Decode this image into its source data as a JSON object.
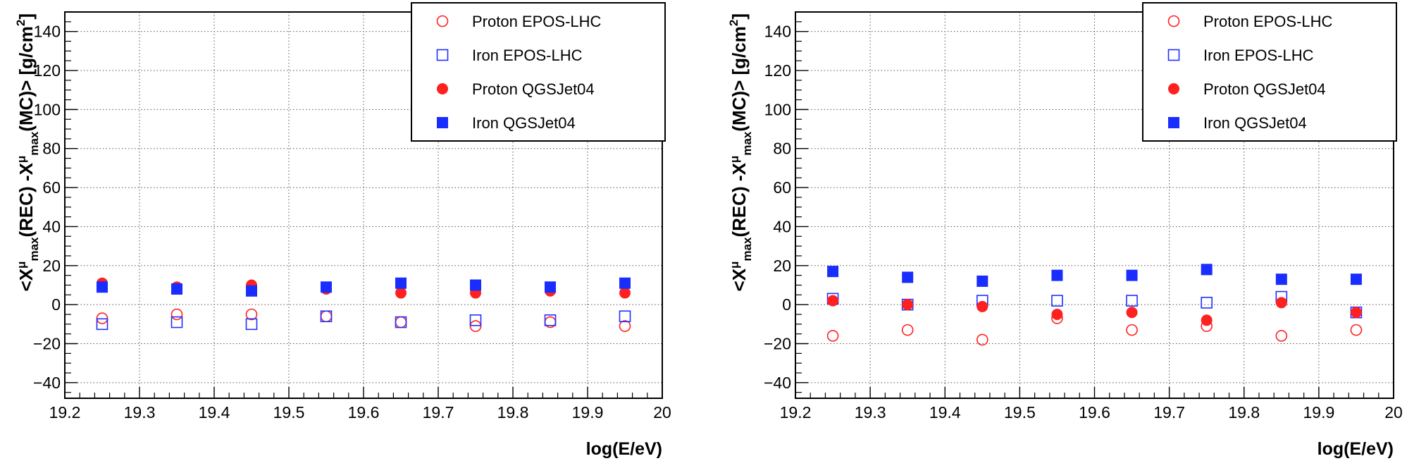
{
  "figure": {
    "panel_count": 2
  },
  "chart_data": [
    {
      "type": "scatter",
      "title": "",
      "xlabel": "log(E/eV)",
      "ylabel_parts": [
        "<X",
        "μ",
        "max",
        "(REC) -X",
        "μ",
        "max",
        "(MC)> [g/cm",
        "2",
        "]"
      ],
      "xlim": [
        19.2,
        20
      ],
      "ylim": [
        -48,
        150
      ],
      "xticks": [
        19.2,
        19.3,
        19.4,
        19.5,
        19.6,
        19.7,
        19.8,
        19.9,
        20
      ],
      "xtick_labels": [
        "19.2",
        "19.3",
        "19.4",
        "19.5",
        "19.6",
        "19.7",
        "19.8",
        "19.9",
        "20"
      ],
      "yticks": [
        -40,
        -20,
        0,
        20,
        40,
        60,
        80,
        100,
        120,
        140
      ],
      "ytick_labels": [
        "−40",
        "−20",
        "0",
        "20",
        "40",
        "60",
        "80",
        "100",
        "120",
        "140"
      ],
      "grid": true,
      "legend_position": "top-right",
      "x": [
        19.25,
        19.35,
        19.45,
        19.55,
        19.65,
        19.75,
        19.85,
        19.95
      ],
      "series": [
        {
          "name": "Proton EPOS-LHC",
          "marker": "open-circle",
          "color": "#ff2020",
          "values": [
            -7,
            -5,
            -5,
            -6,
            -9,
            -11,
            -9,
            -11
          ]
        },
        {
          "name": "Iron EPOS-LHC",
          "marker": "open-square",
          "color": "#2030ff",
          "values": [
            -10,
            -9,
            -10,
            -6,
            -9,
            -8,
            -8,
            -6
          ]
        },
        {
          "name": "Proton QGSJet04",
          "marker": "filled-circle",
          "color": "#ff2020",
          "values": [
            11,
            9,
            10,
            8,
            6,
            6,
            7,
            6
          ]
        },
        {
          "name": "Iron QGSJet04",
          "marker": "filled-square",
          "color": "#1a2dff",
          "values": [
            9,
            8,
            7,
            9,
            11,
            10,
            9,
            11
          ]
        }
      ]
    },
    {
      "type": "scatter",
      "title": "",
      "xlabel": "log(E/eV)",
      "ylabel_parts": [
        "<X",
        "μ",
        "max",
        "(REC) -X",
        "μ",
        "max",
        "(MC)> [g/cm",
        "2",
        "]"
      ],
      "xlim": [
        19.2,
        20
      ],
      "ylim": [
        -48,
        150
      ],
      "xticks": [
        19.2,
        19.3,
        19.4,
        19.5,
        19.6,
        19.7,
        19.8,
        19.9,
        20
      ],
      "xtick_labels": [
        "19.2",
        "19.3",
        "19.4",
        "19.5",
        "19.6",
        "19.7",
        "19.8",
        "19.9",
        "20"
      ],
      "yticks": [
        -40,
        -20,
        0,
        20,
        40,
        60,
        80,
        100,
        120,
        140
      ],
      "ytick_labels": [
        "−40",
        "−20",
        "0",
        "20",
        "40",
        "60",
        "80",
        "100",
        "120",
        "140"
      ],
      "grid": true,
      "legend_position": "top-right",
      "x": [
        19.25,
        19.35,
        19.45,
        19.55,
        19.65,
        19.75,
        19.85,
        19.95
      ],
      "series": [
        {
          "name": "Proton EPOS-LHC",
          "marker": "open-circle",
          "color": "#ff2020",
          "values": [
            -16,
            -13,
            -18,
            -7,
            -13,
            -11,
            -16,
            -13
          ]
        },
        {
          "name": "Iron EPOS-LHC",
          "marker": "open-square",
          "color": "#2030ff",
          "values": [
            3,
            0,
            2,
            2,
            2,
            1,
            4,
            -4
          ]
        },
        {
          "name": "Proton QGSJet04",
          "marker": "filled-circle",
          "color": "#ff2020",
          "values": [
            2,
            0,
            -1,
            -5,
            -4,
            -8,
            1,
            -4
          ]
        },
        {
          "name": "Iron QGSJet04",
          "marker": "filled-square",
          "color": "#1a2dff",
          "values": [
            17,
            14,
            12,
            15,
            15,
            18,
            13,
            13
          ]
        }
      ]
    }
  ]
}
